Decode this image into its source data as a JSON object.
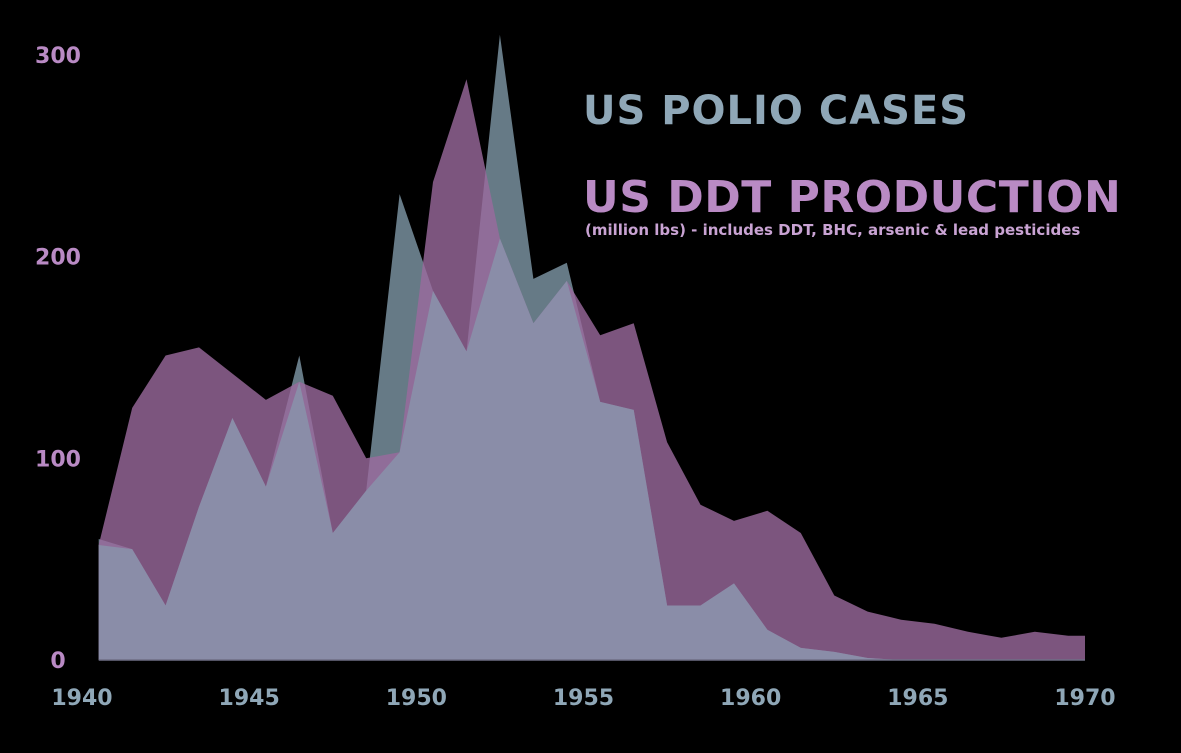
{
  "colors": {
    "background": "#000000",
    "polio_fill": "#7f98a8",
    "polio_text": "#8fa7b7",
    "ddt_fill": "#9b6a9e",
    "ddt_text": "#b98ac4",
    "overlap_fill": "#8a8da8"
  },
  "titles": {
    "polio": "US POLIO CASES",
    "ddt": "US DDT PRODUCTION",
    "ddt_subtitle": "(million lbs) - includes DDT, BHC, arsenic & lead pesticides"
  },
  "chart_data": {
    "type": "area",
    "x": [
      1940.5,
      1941.5,
      1942.5,
      1943.5,
      1944.5,
      1945.5,
      1946.5,
      1947.5,
      1948.5,
      1949.5,
      1950.5,
      1951.5,
      1952.5,
      1953.5,
      1954.5,
      1955.5,
      1956.5,
      1957.5,
      1958.5,
      1959.5,
      1960.5,
      1961.5,
      1962.5,
      1963.5,
      1964.5,
      1965.5,
      1966.5,
      1967.5,
      1968.5,
      1969.5,
      1970
    ],
    "series": [
      {
        "name": "US POLIO CASES",
        "values": [
          60,
          55,
          27,
          76,
          120,
          86,
          151,
          63,
          84,
          231,
          183,
          153,
          310,
          189,
          197,
          128,
          124,
          27,
          27,
          38,
          15,
          6,
          4,
          1,
          0,
          0,
          0,
          0,
          0,
          0,
          0
        ]
      },
      {
        "name": "US DDT PRODUCTION",
        "values": [
          57,
          125,
          151,
          155,
          142,
          129,
          138,
          131,
          100,
          103,
          237,
          288,
          209,
          167,
          188,
          161,
          167,
          108,
          77,
          69,
          74,
          63,
          32,
          24,
          20,
          18,
          14,
          11,
          14,
          12,
          12
        ]
      }
    ],
    "xlim": [
      1940,
      1970
    ],
    "ylim": [
      0,
      300
    ],
    "xticks": [
      "1940",
      "1945",
      "1950",
      "1955",
      "1960",
      "1965",
      "1970"
    ],
    "yticks": [
      "0",
      "100",
      "200",
      "300"
    ]
  }
}
